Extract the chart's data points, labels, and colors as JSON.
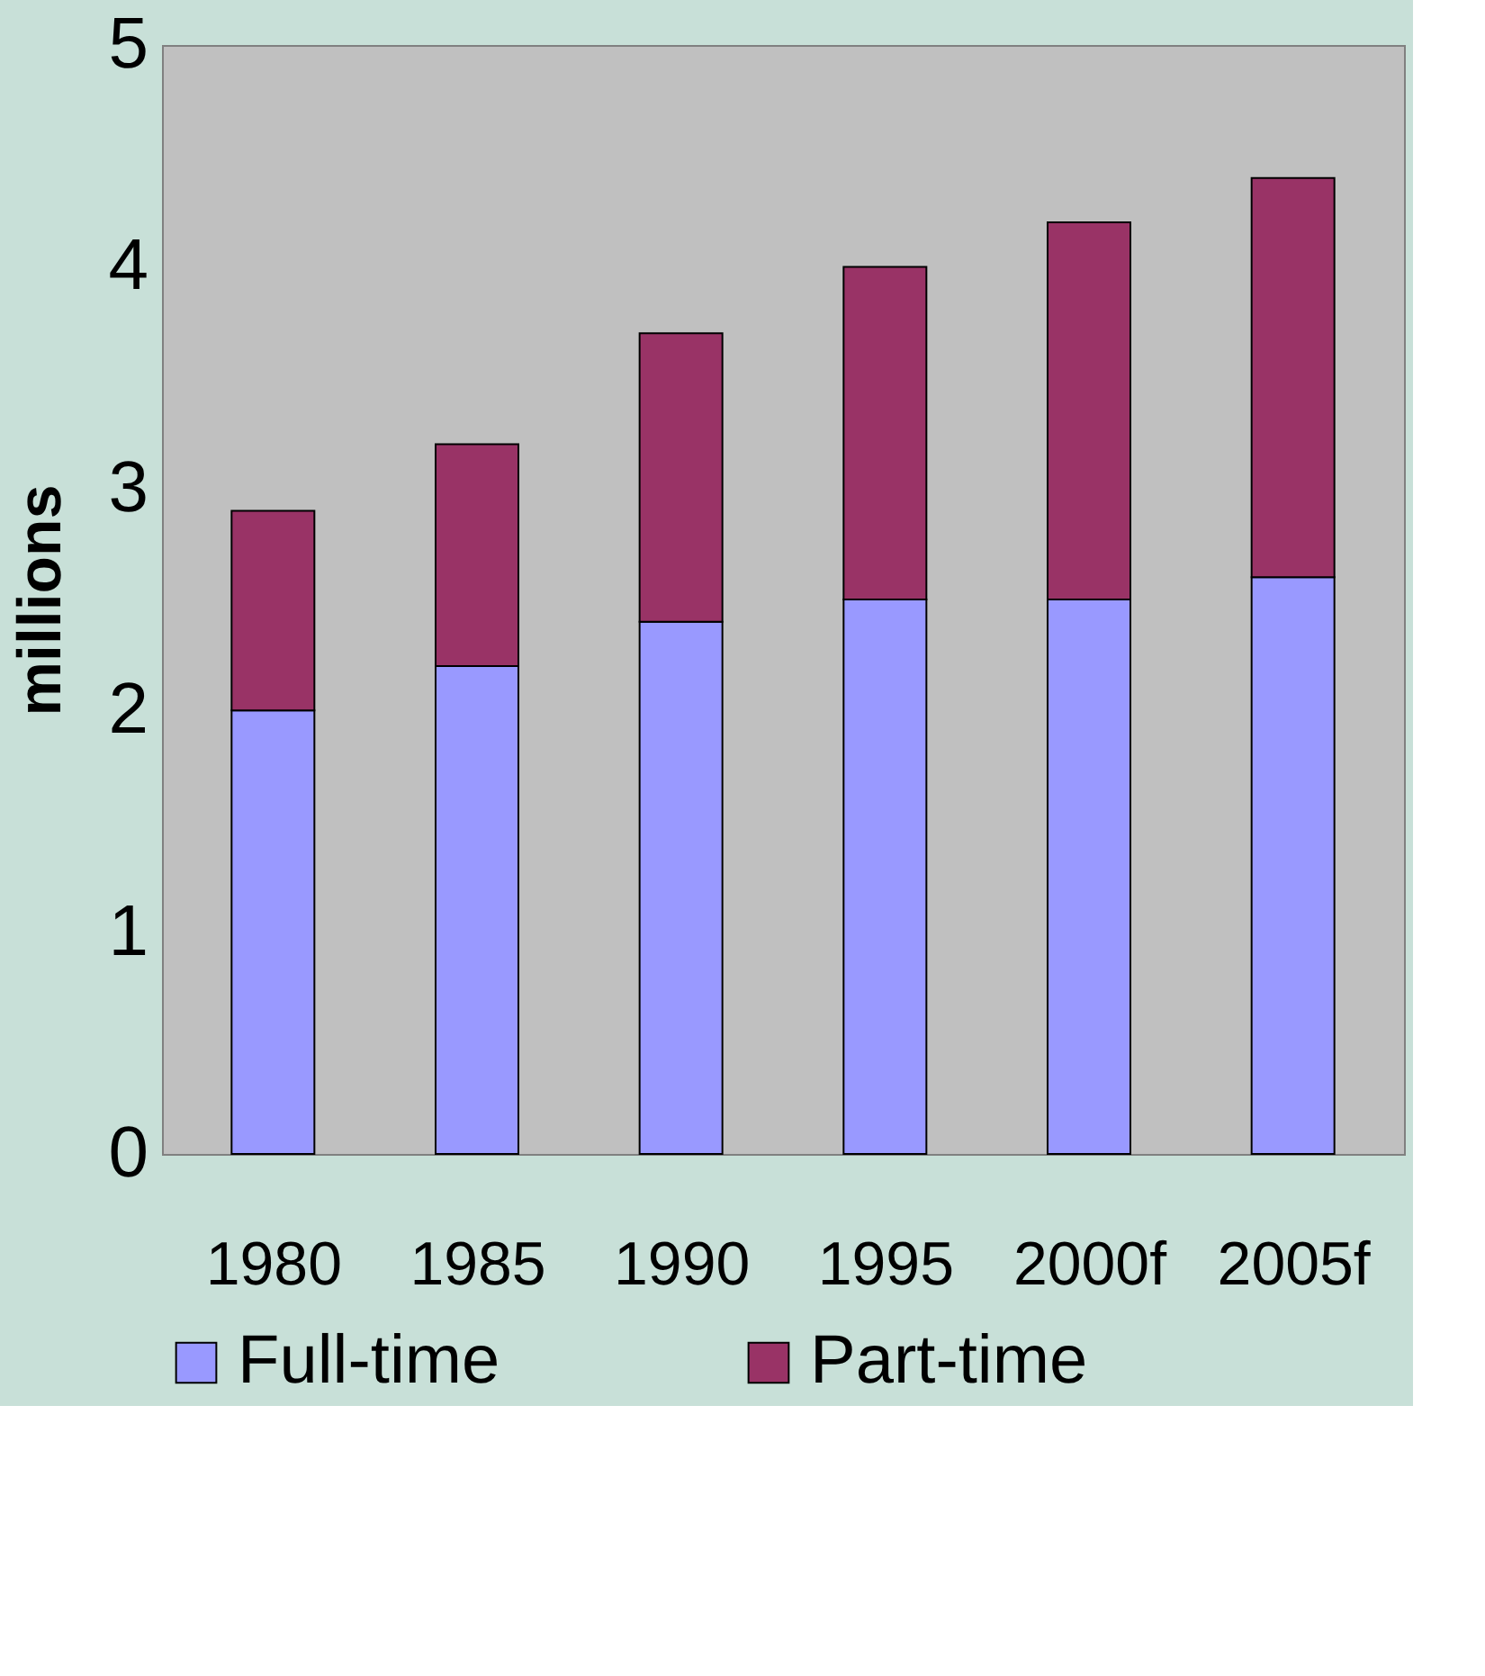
{
  "chart_data": {
    "type": "bar",
    "stacked": true,
    "ylabel": "millions",
    "categories": [
      "1980",
      "1985",
      "1990",
      "1995",
      "2000f",
      "2005f"
    ],
    "series": [
      {
        "name": "Full-time",
        "color": "#9999ff",
        "values": [
          2.0,
          2.2,
          2.4,
          2.5,
          2.5,
          2.6
        ]
      },
      {
        "name": "Part-time",
        "color": "#993366",
        "values": [
          0.9,
          1.0,
          1.3,
          1.5,
          1.7,
          1.8
        ]
      }
    ],
    "ylim": [
      0,
      5
    ],
    "yticks": [
      0,
      1,
      2,
      3,
      4,
      5
    ],
    "grid": false,
    "legend": "bottom"
  }
}
